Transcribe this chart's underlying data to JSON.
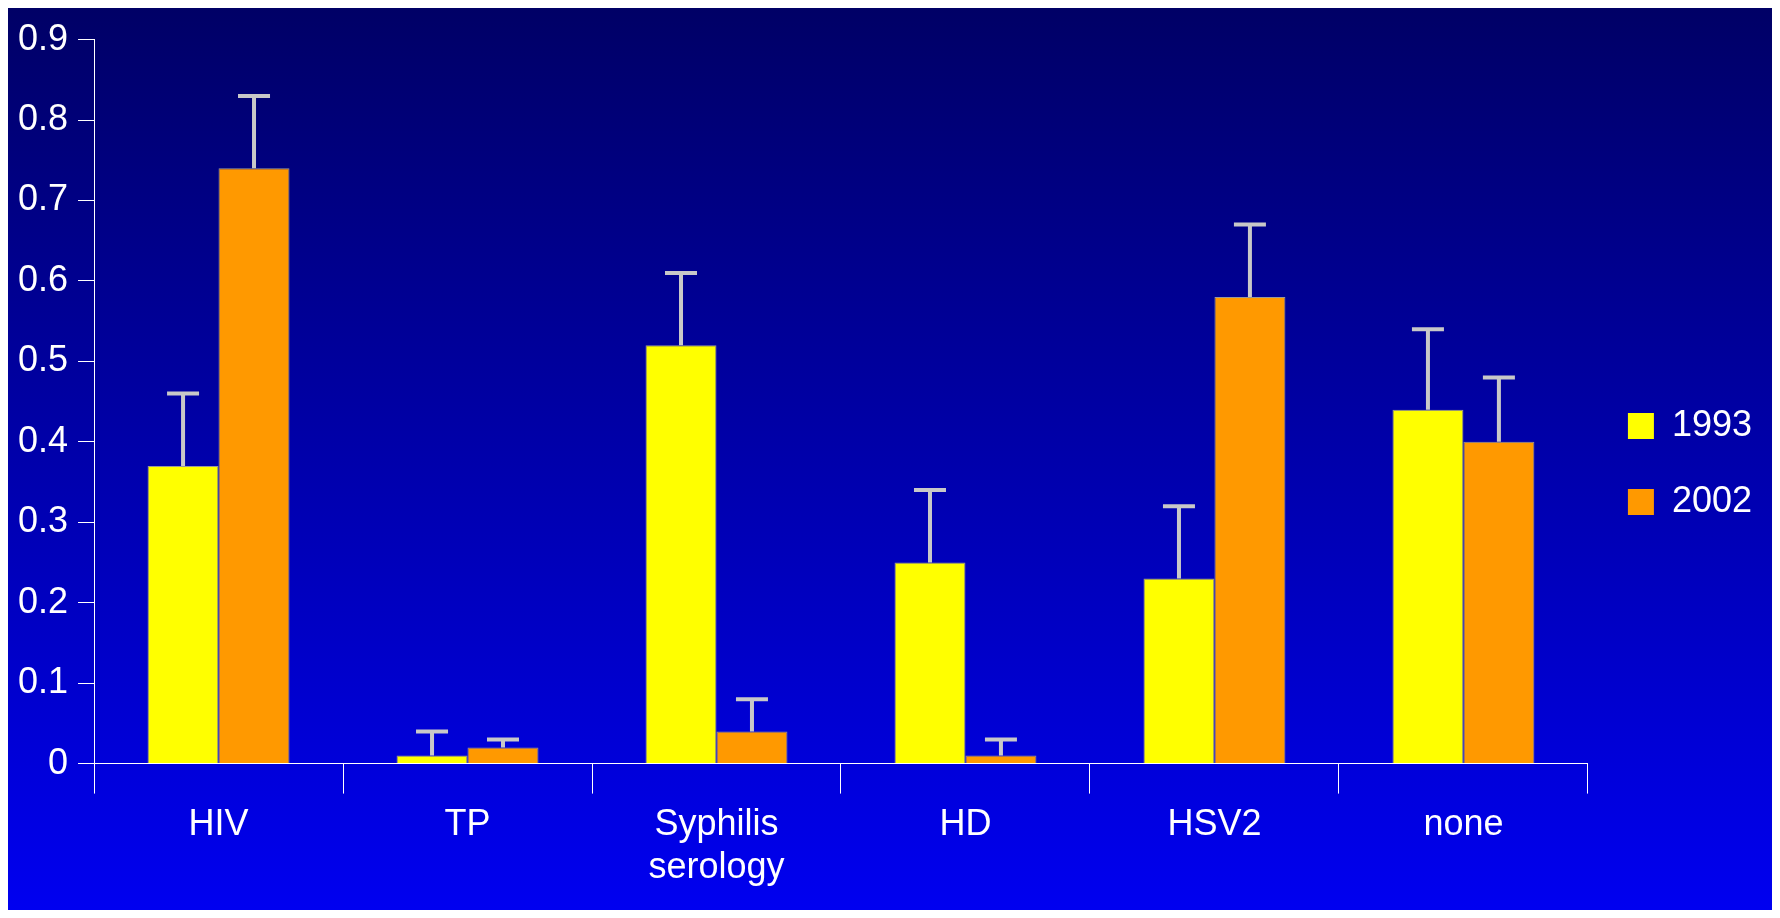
{
  "chart_data": {
    "type": "bar",
    "categories": [
      "HIV",
      "TP",
      "Syphilis serology",
      "HD",
      "HSV2",
      "none"
    ],
    "series": [
      {
        "name": "1993",
        "color": "#ffff00",
        "values": [
          0.37,
          0.01,
          0.52,
          0.25,
          0.23,
          0.44
        ],
        "errors": [
          [
            0.37,
            0.46
          ],
          [
            0.01,
            0.04
          ],
          [
            0.52,
            0.61
          ],
          [
            0.25,
            0.34
          ],
          [
            0.23,
            0.32
          ],
          [
            0.44,
            0.54
          ]
        ]
      },
      {
        "name": "2002",
        "color": "#ff9900",
        "values": [
          0.74,
          0.02,
          0.04,
          0.01,
          0.58,
          0.4
        ],
        "errors": [
          [
            0.74,
            0.83
          ],
          [
            0.02,
            0.03
          ],
          [
            0.04,
            0.08
          ],
          [
            0.01,
            0.03
          ],
          [
            0.58,
            0.67
          ],
          [
            0.4,
            0.48
          ]
        ]
      }
    ],
    "ylim": [
      0,
      0.9
    ],
    "yticks": [
      0,
      0.1,
      0.2,
      0.3,
      0.4,
      0.5,
      0.6,
      0.7,
      0.8,
      0.9
    ],
    "grid": false,
    "legend": "right"
  }
}
